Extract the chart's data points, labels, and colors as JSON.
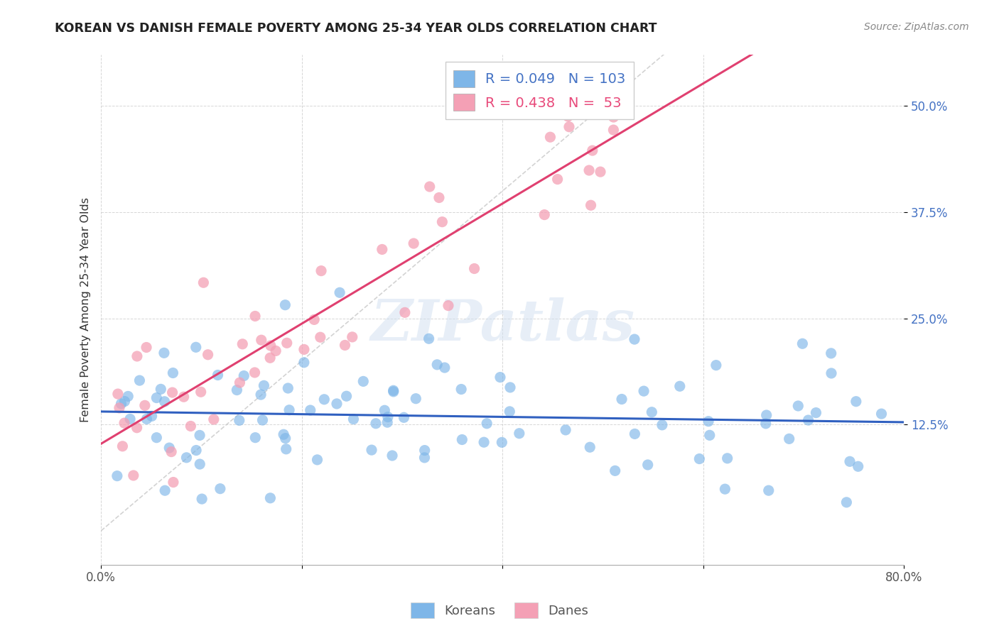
{
  "title": "KOREAN VS DANISH FEMALE POVERTY AMONG 25-34 YEAR OLDS CORRELATION CHART",
  "source": "Source: ZipAtlas.com",
  "ylabel": "Female Poverty Among 25-34 Year Olds",
  "xlim": [
    0.0,
    0.8
  ],
  "ylim": [
    -0.04,
    0.56
  ],
  "ytick_positions": [
    0.125,
    0.25,
    0.375,
    0.5
  ],
  "ytick_labels": [
    "12.5%",
    "25.0%",
    "37.5%",
    "50.0%"
  ],
  "background_color": "#ffffff",
  "watermark": "ZIPatlas",
  "korean_color": "#7EB6E8",
  "dane_color": "#F4A0B5",
  "korean_R": 0.049,
  "korean_N": 103,
  "dane_R": 0.438,
  "dane_N": 53,
  "legend_korean_label": "Koreans",
  "legend_dane_label": "Danes",
  "diagonal_color": "#c8c8c8",
  "korean_line_color": "#3060c0",
  "dane_line_color": "#e04070",
  "title_color": "#222222",
  "source_color": "#888888",
  "ytick_color": "#4472c4",
  "xtick_color": "#555555"
}
